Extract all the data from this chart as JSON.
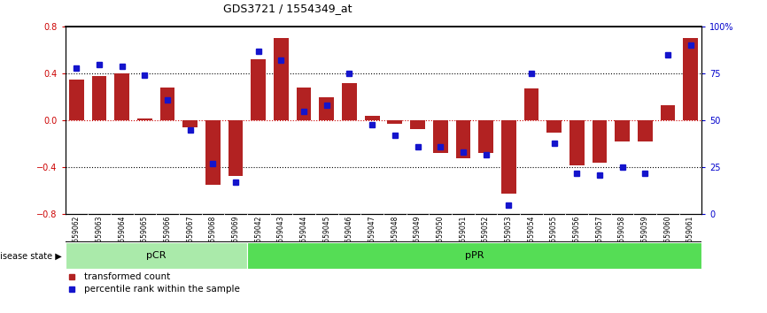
{
  "title": "GDS3721 / 1554349_at",
  "samples": [
    "GSM559062",
    "GSM559063",
    "GSM559064",
    "GSM559065",
    "GSM559066",
    "GSM559067",
    "GSM559068",
    "GSM559069",
    "GSM559042",
    "GSM559043",
    "GSM559044",
    "GSM559045",
    "GSM559046",
    "GSM559047",
    "GSM559048",
    "GSM559049",
    "GSM559050",
    "GSM559051",
    "GSM559052",
    "GSM559053",
    "GSM559054",
    "GSM559055",
    "GSM559056",
    "GSM559057",
    "GSM559058",
    "GSM559059",
    "GSM559060",
    "GSM559061"
  ],
  "bar_values": [
    0.35,
    0.38,
    0.4,
    0.02,
    0.28,
    -0.06,
    -0.55,
    -0.47,
    0.52,
    0.7,
    0.28,
    0.2,
    0.32,
    0.04,
    -0.03,
    -0.07,
    -0.28,
    -0.32,
    -0.28,
    -0.62,
    0.27,
    -0.1,
    -0.38,
    -0.36,
    -0.18,
    -0.18,
    0.13,
    0.7
  ],
  "percentile_values": [
    78,
    80,
    79,
    74,
    61,
    45,
    27,
    17,
    87,
    82,
    55,
    58,
    75,
    48,
    42,
    36,
    36,
    33,
    32,
    5,
    75,
    38,
    22,
    21,
    25,
    22,
    85,
    90
  ],
  "pCR_count": 8,
  "pPR_count": 20,
  "ylim_left": [
    -0.8,
    0.8
  ],
  "ylim_right": [
    0,
    100
  ],
  "yticks_left": [
    -0.8,
    -0.4,
    0.0,
    0.4,
    0.8
  ],
  "yticks_right": [
    0,
    25,
    50,
    75,
    100
  ],
  "ytick_right_labels": [
    "0",
    "25",
    "50",
    "75",
    "100%"
  ],
  "bar_color": "#B22222",
  "dot_color": "#1414CC",
  "pCR_color": "#AAEAAA",
  "pPR_color": "#55DD55",
  "xtick_bg_color": "#C8C8C8",
  "xtick_divider_color": "#FFFFFF",
  "label_color_left": "#CC0000",
  "label_color_right": "#0000CC",
  "dotted_line_color": "#000000",
  "zero_line_color": "#CC0000",
  "border_color": "#000000",
  "legend_red": "transformed count",
  "legend_blue": "percentile rank within the sample",
  "disease_state_label": "disease state",
  "pCR_label": "pCR",
  "pPR_label": "pPR",
  "title_fontsize": 9,
  "tick_fontsize": 7,
  "sample_fontsize": 5.5,
  "legend_fontsize": 7.5,
  "disease_fontsize": 8,
  "ds_label_fontsize": 7
}
